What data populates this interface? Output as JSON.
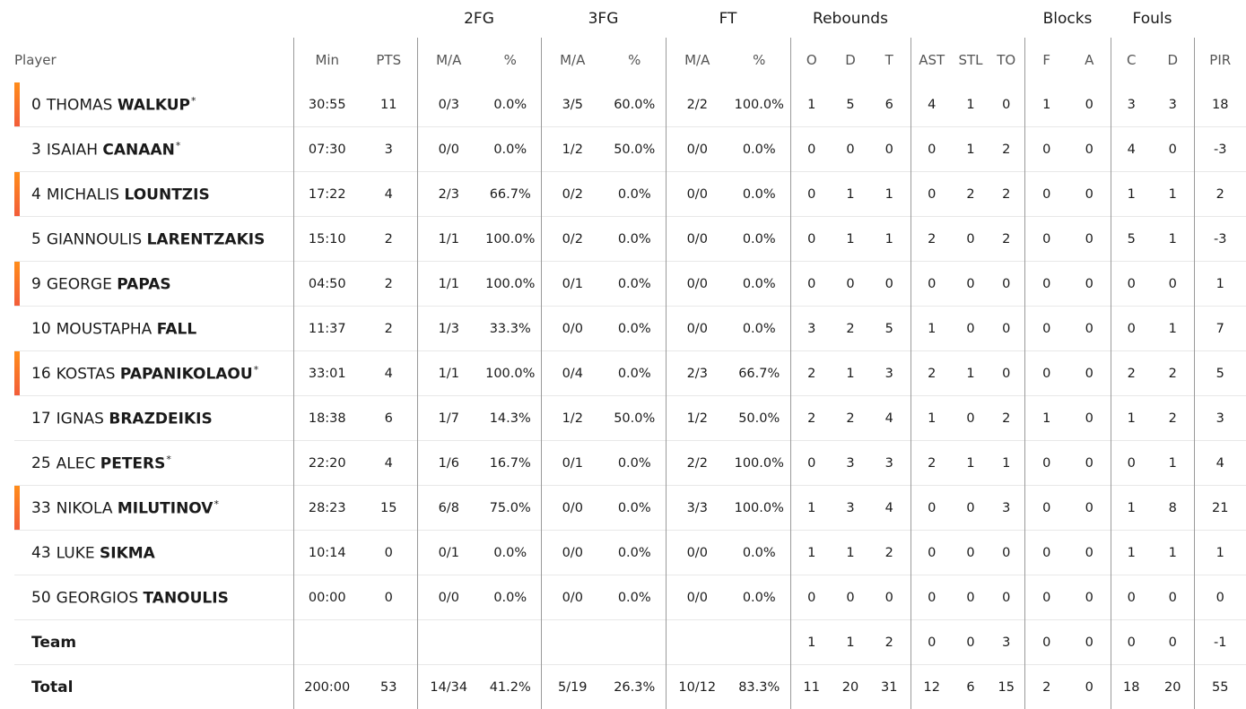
{
  "groups": {
    "fg2": "2FG",
    "fg3": "3FG",
    "ft": "FT",
    "rebounds": "Rebounds",
    "blocks": "Blocks",
    "fouls": "Fouls"
  },
  "columns": {
    "player": "Player",
    "min": "Min",
    "pts": "PTS",
    "fg2_ma": "M/A",
    "fg2_pct": "%",
    "fg3_ma": "M/A",
    "fg3_pct": "%",
    "ft_ma": "M/A",
    "ft_pct": "%",
    "reb_o": "O",
    "reb_d": "D",
    "reb_t": "T",
    "ast": "AST",
    "stl": "STL",
    "to": "TO",
    "blk_f": "F",
    "blk_a": "A",
    "foul_c": "C",
    "foul_d": "D",
    "pir": "PIR"
  },
  "players": [
    {
      "num": "0",
      "first": "THOMAS",
      "last": "WALKUP",
      "star": "*",
      "highlight": true,
      "min": "30:55",
      "pts": "11",
      "fg2_ma": "0/3",
      "fg2_pct": "0.0%",
      "fg3_ma": "3/5",
      "fg3_pct": "60.0%",
      "ft_ma": "2/2",
      "ft_pct": "100.0%",
      "reb_o": "1",
      "reb_d": "5",
      "reb_t": "6",
      "ast": "4",
      "stl": "1",
      "to": "0",
      "blk_f": "1",
      "blk_a": "0",
      "foul_c": "3",
      "foul_d": "3",
      "pir": "18"
    },
    {
      "num": "3",
      "first": "ISAIAH",
      "last": "CANAAN",
      "star": "*",
      "highlight": false,
      "min": "07:30",
      "pts": "3",
      "fg2_ma": "0/0",
      "fg2_pct": "0.0%",
      "fg3_ma": "1/2",
      "fg3_pct": "50.0%",
      "ft_ma": "0/0",
      "ft_pct": "0.0%",
      "reb_o": "0",
      "reb_d": "0",
      "reb_t": "0",
      "ast": "0",
      "stl": "1",
      "to": "2",
      "blk_f": "0",
      "blk_a": "0",
      "foul_c": "4",
      "foul_d": "0",
      "pir": "-3"
    },
    {
      "num": "4",
      "first": "MICHALIS",
      "last": "LOUNTZIS",
      "star": "",
      "highlight": true,
      "min": "17:22",
      "pts": "4",
      "fg2_ma": "2/3",
      "fg2_pct": "66.7%",
      "fg3_ma": "0/2",
      "fg3_pct": "0.0%",
      "ft_ma": "0/0",
      "ft_pct": "0.0%",
      "reb_o": "0",
      "reb_d": "1",
      "reb_t": "1",
      "ast": "0",
      "stl": "2",
      "to": "2",
      "blk_f": "0",
      "blk_a": "0",
      "foul_c": "1",
      "foul_d": "1",
      "pir": "2"
    },
    {
      "num": "5",
      "first": "GIANNOULIS",
      "last": "LARENTZAKIS",
      "star": "",
      "highlight": false,
      "min": "15:10",
      "pts": "2",
      "fg2_ma": "1/1",
      "fg2_pct": "100.0%",
      "fg3_ma": "0/2",
      "fg3_pct": "0.0%",
      "ft_ma": "0/0",
      "ft_pct": "0.0%",
      "reb_o": "0",
      "reb_d": "1",
      "reb_t": "1",
      "ast": "2",
      "stl": "0",
      "to": "2",
      "blk_f": "0",
      "blk_a": "0",
      "foul_c": "5",
      "foul_d": "1",
      "pir": "-3"
    },
    {
      "num": "9",
      "first": "GEORGE",
      "last": "PAPAS",
      "star": "",
      "highlight": true,
      "min": "04:50",
      "pts": "2",
      "fg2_ma": "1/1",
      "fg2_pct": "100.0%",
      "fg3_ma": "0/1",
      "fg3_pct": "0.0%",
      "ft_ma": "0/0",
      "ft_pct": "0.0%",
      "reb_o": "0",
      "reb_d": "0",
      "reb_t": "0",
      "ast": "0",
      "stl": "0",
      "to": "0",
      "blk_f": "0",
      "blk_a": "0",
      "foul_c": "0",
      "foul_d": "0",
      "pir": "1"
    },
    {
      "num": "10",
      "first": "MOUSTAPHA",
      "last": "FALL",
      "star": "",
      "highlight": false,
      "min": "11:37",
      "pts": "2",
      "fg2_ma": "1/3",
      "fg2_pct": "33.3%",
      "fg3_ma": "0/0",
      "fg3_pct": "0.0%",
      "ft_ma": "0/0",
      "ft_pct": "0.0%",
      "reb_o": "3",
      "reb_d": "2",
      "reb_t": "5",
      "ast": "1",
      "stl": "0",
      "to": "0",
      "blk_f": "0",
      "blk_a": "0",
      "foul_c": "0",
      "foul_d": "1",
      "pir": "7"
    },
    {
      "num": "16",
      "first": "KOSTAS",
      "last": "PAPANIKOLAOU",
      "star": "*",
      "highlight": true,
      "min": "33:01",
      "pts": "4",
      "fg2_ma": "1/1",
      "fg2_pct": "100.0%",
      "fg3_ma": "0/4",
      "fg3_pct": "0.0%",
      "ft_ma": "2/3",
      "ft_pct": "66.7%",
      "reb_o": "2",
      "reb_d": "1",
      "reb_t": "3",
      "ast": "2",
      "stl": "1",
      "to": "0",
      "blk_f": "0",
      "blk_a": "0",
      "foul_c": "2",
      "foul_d": "2",
      "pir": "5"
    },
    {
      "num": "17",
      "first": "IGNAS",
      "last": "BRAZDEIKIS",
      "star": "",
      "highlight": false,
      "min": "18:38",
      "pts": "6",
      "fg2_ma": "1/7",
      "fg2_pct": "14.3%",
      "fg3_ma": "1/2",
      "fg3_pct": "50.0%",
      "ft_ma": "1/2",
      "ft_pct": "50.0%",
      "reb_o": "2",
      "reb_d": "2",
      "reb_t": "4",
      "ast": "1",
      "stl": "0",
      "to": "2",
      "blk_f": "1",
      "blk_a": "0",
      "foul_c": "1",
      "foul_d": "2",
      "pir": "3"
    },
    {
      "num": "25",
      "first": "ALEC",
      "last": "PETERS",
      "star": "*",
      "highlight": false,
      "min": "22:20",
      "pts": "4",
      "fg2_ma": "1/6",
      "fg2_pct": "16.7%",
      "fg3_ma": "0/1",
      "fg3_pct": "0.0%",
      "ft_ma": "2/2",
      "ft_pct": "100.0%",
      "reb_o": "0",
      "reb_d": "3",
      "reb_t": "3",
      "ast": "2",
      "stl": "1",
      "to": "1",
      "blk_f": "0",
      "blk_a": "0",
      "foul_c": "0",
      "foul_d": "1",
      "pir": "4"
    },
    {
      "num": "33",
      "first": "NIKOLA",
      "last": "MILUTINOV",
      "star": "*",
      "highlight": true,
      "min": "28:23",
      "pts": "15",
      "fg2_ma": "6/8",
      "fg2_pct": "75.0%",
      "fg3_ma": "0/0",
      "fg3_pct": "0.0%",
      "ft_ma": "3/3",
      "ft_pct": "100.0%",
      "reb_o": "1",
      "reb_d": "3",
      "reb_t": "4",
      "ast": "0",
      "stl": "0",
      "to": "3",
      "blk_f": "0",
      "blk_a": "0",
      "foul_c": "1",
      "foul_d": "8",
      "pir": "21"
    },
    {
      "num": "43",
      "first": "LUKE",
      "last": "SIKMA",
      "star": "",
      "highlight": false,
      "min": "10:14",
      "pts": "0",
      "fg2_ma": "0/1",
      "fg2_pct": "0.0%",
      "fg3_ma": "0/0",
      "fg3_pct": "0.0%",
      "ft_ma": "0/0",
      "ft_pct": "0.0%",
      "reb_o": "1",
      "reb_d": "1",
      "reb_t": "2",
      "ast": "0",
      "stl": "0",
      "to": "0",
      "blk_f": "0",
      "blk_a": "0",
      "foul_c": "1",
      "foul_d": "1",
      "pir": "1"
    },
    {
      "num": "50",
      "first": "GEORGIOS",
      "last": "TANOULIS",
      "star": "",
      "highlight": false,
      "min": "00:00",
      "pts": "0",
      "fg2_ma": "0/0",
      "fg2_pct": "0.0%",
      "fg3_ma": "0/0",
      "fg3_pct": "0.0%",
      "ft_ma": "0/0",
      "ft_pct": "0.0%",
      "reb_o": "0",
      "reb_d": "0",
      "reb_t": "0",
      "ast": "0",
      "stl": "0",
      "to": "0",
      "blk_f": "0",
      "blk_a": "0",
      "foul_c": "0",
      "foul_d": "0",
      "pir": "0"
    }
  ],
  "team": {
    "label": "Team",
    "min": "",
    "pts": "",
    "fg2_ma": "",
    "fg2_pct": "",
    "fg3_ma": "",
    "fg3_pct": "",
    "ft_ma": "",
    "ft_pct": "",
    "reb_o": "1",
    "reb_d": "1",
    "reb_t": "2",
    "ast": "0",
    "stl": "0",
    "to": "3",
    "blk_f": "0",
    "blk_a": "0",
    "foul_c": "0",
    "foul_d": "0",
    "pir": "-1"
  },
  "total": {
    "label": "Total",
    "min": "200:00",
    "pts": "53",
    "fg2_ma": "14/34",
    "fg2_pct": "41.2%",
    "fg3_ma": "5/19",
    "fg3_pct": "26.3%",
    "ft_ma": "10/12",
    "ft_pct": "83.3%",
    "reb_o": "11",
    "reb_d": "20",
    "reb_t": "31",
    "ast": "12",
    "stl": "6",
    "to": "15",
    "blk_f": "2",
    "blk_a": "0",
    "foul_c": "18",
    "foul_d": "20",
    "pir": "55"
  },
  "colors": {
    "accent_bar": "#f25c3a",
    "accent_bar_top": "#ff8c1a",
    "divider": "#9a9a9a"
  }
}
